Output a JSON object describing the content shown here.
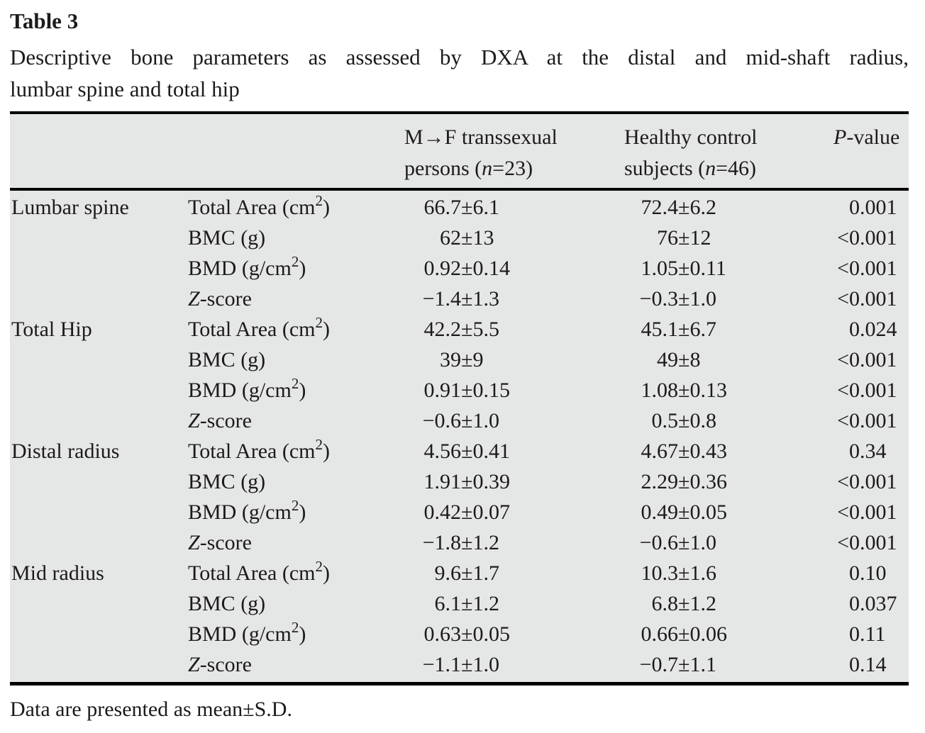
{
  "title": "Table 3",
  "caption_line1": "Descriptive bone parameters as assessed by DXA at the distal and mid-shaft radius,",
  "caption_line2": "lumbar spine and total hip",
  "footnote": "Data are presented as mean±S.D.",
  "symbols": {
    "pm": "±"
  },
  "colors": {
    "table_bg": "#e5e6e6",
    "rule": "#000000",
    "text": "#1d1b1a"
  },
  "header": {
    "mf": {
      "line1": "M→F transsexual",
      "line2_pre": "persons (",
      "line2_var": "n",
      "line2_post": "=23)"
    },
    "hc": {
      "line1": "Healthy control",
      "line2_pre": "subjects (",
      "line2_var": "n",
      "line2_post": "=46)"
    },
    "p": {
      "var": "P",
      "post": "-value"
    }
  },
  "table": {
    "groups": [
      {
        "region": "Lumbar spine",
        "rows": [
          {
            "param": {
              "var": "",
              "pre": "Total Area (cm",
              "sup": "2",
              "post": ")"
            },
            "mf_mean": "66.7",
            "mf_sd": "6.1",
            "hc_mean": "72.4",
            "hc_sd": "6.2",
            "p_prefix": "",
            "p_value": "0.001"
          },
          {
            "param": {
              "var": "",
              "pre": "BMC (g)",
              "sup": "",
              "post": ""
            },
            "mf_mean": "62",
            "mf_sd": "13",
            "hc_mean": "76",
            "hc_sd": "12",
            "p_prefix": "<",
            "p_value": "0.001"
          },
          {
            "param": {
              "var": "",
              "pre": "BMD (g/cm",
              "sup": "2",
              "post": ")"
            },
            "mf_mean": "0.92",
            "mf_sd": "0.14",
            "hc_mean": "1.05",
            "hc_sd": "0.11",
            "p_prefix": "<",
            "p_value": "0.001"
          },
          {
            "param": {
              "var": "Z",
              "pre": "-score",
              "sup": "",
              "post": ""
            },
            "mf_mean": "−1.4",
            "mf_sd": "1.3",
            "hc_mean": "−0.3",
            "hc_sd": "1.0",
            "p_prefix": "<",
            "p_value": "0.001"
          }
        ]
      },
      {
        "region": "Total Hip",
        "rows": [
          {
            "param": {
              "var": "",
              "pre": "Total Area (cm",
              "sup": "2",
              "post": ")"
            },
            "mf_mean": "42.2",
            "mf_sd": "5.5",
            "hc_mean": "45.1",
            "hc_sd": "6.7",
            "p_prefix": "",
            "p_value": "0.024"
          },
          {
            "param": {
              "var": "",
              "pre": "BMC (g)",
              "sup": "",
              "post": ""
            },
            "mf_mean": "39",
            "mf_sd": "9",
            "hc_mean": "49",
            "hc_sd": "8",
            "p_prefix": "<",
            "p_value": "0.001"
          },
          {
            "param": {
              "var": "",
              "pre": "BMD (g/cm",
              "sup": "2",
              "post": ")"
            },
            "mf_mean": "0.91",
            "mf_sd": "0.15",
            "hc_mean": "1.08",
            "hc_sd": "0.13",
            "p_prefix": "<",
            "p_value": "0.001"
          },
          {
            "param": {
              "var": "Z",
              "pre": "-score",
              "sup": "",
              "post": ""
            },
            "mf_mean": "−0.6",
            "mf_sd": "1.0",
            "hc_mean": "0.5",
            "hc_sd": "0.8",
            "p_prefix": "<",
            "p_value": "0.001"
          }
        ]
      },
      {
        "region": "Distal radius",
        "rows": [
          {
            "param": {
              "var": "",
              "pre": "Total Area (cm",
              "sup": "2",
              "post": ")"
            },
            "mf_mean": "4.56",
            "mf_sd": "0.41",
            "hc_mean": "4.67",
            "hc_sd": "0.43",
            "p_prefix": "",
            "p_value": "0.34"
          },
          {
            "param": {
              "var": "",
              "pre": "BMC (g)",
              "sup": "",
              "post": ""
            },
            "mf_mean": "1.91",
            "mf_sd": "0.39",
            "hc_mean": "2.29",
            "hc_sd": "0.36",
            "p_prefix": "<",
            "p_value": "0.001"
          },
          {
            "param": {
              "var": "",
              "pre": "BMD (g/cm",
              "sup": "2",
              "post": ")"
            },
            "mf_mean": "0.42",
            "mf_sd": "0.07",
            "hc_mean": "0.49",
            "hc_sd": "0.05",
            "p_prefix": "<",
            "p_value": "0.001"
          },
          {
            "param": {
              "var": "Z",
              "pre": "-score",
              "sup": "",
              "post": ""
            },
            "mf_mean": "−1.8",
            "mf_sd": "1.2",
            "hc_mean": "−0.6",
            "hc_sd": "1.0",
            "p_prefix": "<",
            "p_value": "0.001"
          }
        ]
      },
      {
        "region": "Mid radius",
        "rows": [
          {
            "param": {
              "var": "",
              "pre": "Total Area (cm",
              "sup": "2",
              "post": ")"
            },
            "mf_mean": "9.6",
            "mf_sd": "1.7",
            "hc_mean": "10.3",
            "hc_sd": "1.6",
            "p_prefix": "",
            "p_value": "0.10"
          },
          {
            "param": {
              "var": "",
              "pre": "BMC (g)",
              "sup": "",
              "post": ""
            },
            "mf_mean": "6.1",
            "mf_sd": "1.2",
            "hc_mean": "6.8",
            "hc_sd": "1.2",
            "p_prefix": "",
            "p_value": "0.037"
          },
          {
            "param": {
              "var": "",
              "pre": "BMD (g/cm",
              "sup": "2",
              "post": ")"
            },
            "mf_mean": "0.63",
            "mf_sd": "0.05",
            "hc_mean": "0.66",
            "hc_sd": "0.06",
            "p_prefix": "",
            "p_value": "0.11"
          },
          {
            "param": {
              "var": "Z",
              "pre": "-score",
              "sup": "",
              "post": ""
            },
            "mf_mean": "−1.1",
            "mf_sd": "1.0",
            "hc_mean": "−0.7",
            "hc_sd": "1.1",
            "p_prefix": "",
            "p_value": "0.14"
          }
        ]
      }
    ]
  }
}
